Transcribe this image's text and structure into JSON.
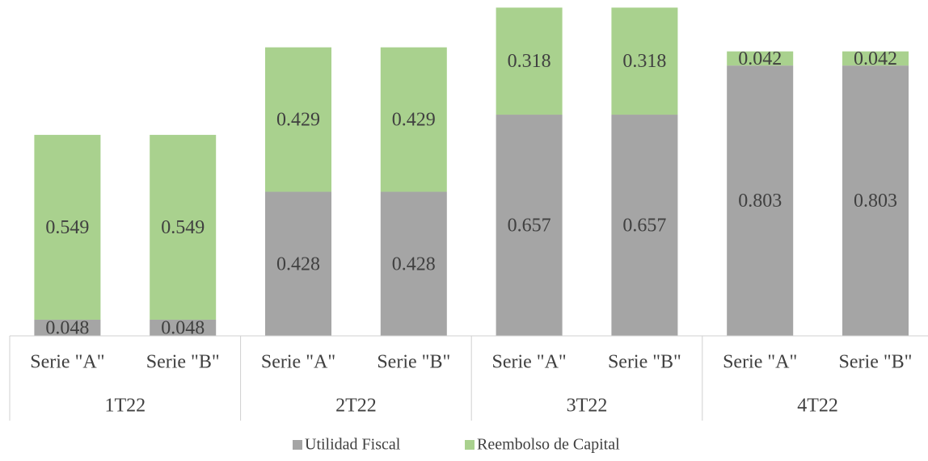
{
  "chart_data": {
    "type": "stacked_bar",
    "categories": [
      "Serie \"A\"",
      "Serie \"B\"",
      "Serie \"A\"",
      "Serie \"B\"",
      "Serie \"A\"",
      "Serie \"B\"",
      "Serie \"A\"",
      "Serie \"B\""
    ],
    "groups": [
      "1T22",
      "2T22",
      "3T22",
      "4T22"
    ],
    "series": [
      {
        "name": "Utilidad Fiscal",
        "color": "#a5a5a5",
        "values": [
          0.048,
          0.048,
          0.428,
          0.428,
          0.657,
          0.657,
          0.803,
          0.803
        ]
      },
      {
        "name": "Reembolso de Capital",
        "color": "#a9d18e",
        "values": [
          0.549,
          0.549,
          0.429,
          0.429,
          0.318,
          0.318,
          0.042,
          0.042
        ]
      }
    ],
    "ylim": [
      0,
      1
    ],
    "legend": "bottom"
  }
}
